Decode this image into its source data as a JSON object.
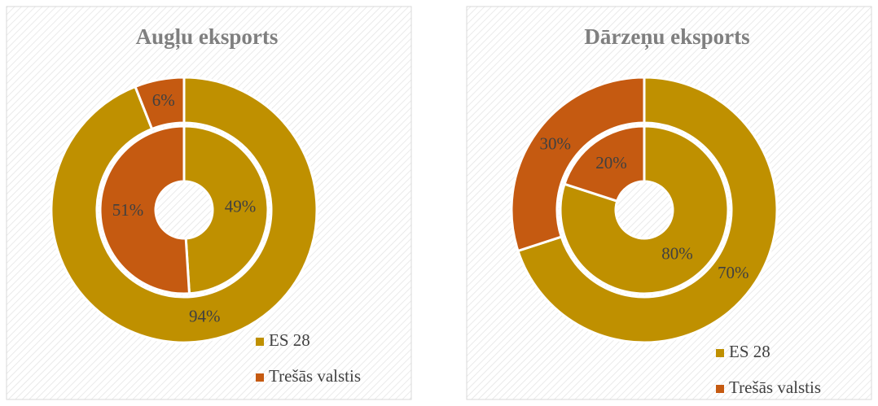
{
  "chart_data": [
    {
      "type": "donut",
      "title": "Augļu eksports",
      "legend": "lower right",
      "categories": [
        "ES 28",
        "Trešās valstis"
      ],
      "colors": [
        "#bf9000",
        "#c55a11"
      ],
      "series": [
        {
          "values": [
            49,
            51
          ],
          "value_labels": [
            "49%",
            "51%"
          ]
        },
        {
          "values": [
            94,
            6
          ],
          "value_labels": [
            "94%",
            "6%"
          ]
        }
      ]
    },
    {
      "type": "donut",
      "title": "Dārzeņu eksports",
      "legend": "lower right",
      "categories": [
        "ES 28",
        "Trešās valstis"
      ],
      "colors": [
        "#bf9000",
        "#c55a11"
      ],
      "series": [
        {
          "values": [
            80,
            20
          ],
          "value_labels": [
            "80%",
            "20%"
          ]
        },
        {
          "values": [
            70,
            30
          ],
          "value_labels": [
            "70%",
            "30%"
          ]
        }
      ]
    }
  ]
}
